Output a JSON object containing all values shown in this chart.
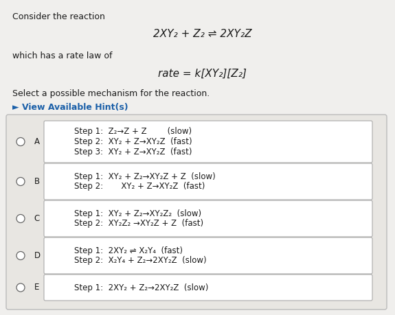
{
  "title_text": "Consider the reaction",
  "reaction_eq": "2XY₂ + Z₂ ⇌ 2XY₂Z",
  "rate_law_label": "which has a rate law of",
  "rate_law": "rate = k[XY₂][Z₂]",
  "select_text": "Select a possible mechanism for the reaction.",
  "hint_text": "► View Available Hint(s)",
  "bg_color": "#f0efed",
  "outer_box_color": "#e8e6e2",
  "inner_box_color": "#ffffff",
  "outer_edge_color": "#bbbbbb",
  "inner_edge_color": "#aaaaaa",
  "text_color": "#1a1a1a",
  "hint_color": "#1a5fa8",
  "options": [
    {
      "label": "A",
      "lines": [
        "Step 1:  Z₂→Z + Z        (slow)",
        "Step 2:  XY₂ + Z→XY₂Z  (fast)",
        "Step 3:  XY₂ + Z→XY₂Z  (fast)"
      ]
    },
    {
      "label": "B",
      "lines": [
        "Step 1:  XY₂ + Z₂→XY₂Z + Z  (slow)",
        "Step 2:       XY₂ + Z→XY₂Z  (fast)"
      ]
    },
    {
      "label": "C",
      "lines": [
        "Step 1:  XY₂ + Z₂→XY₂Z₂  (slow)",
        "Step 2:  XY₂Z₂ →XY₂Z + Z  (fast)"
      ]
    },
    {
      "label": "D",
      "lines": [
        "Step 1:  2XY₂ ⇌ X₂Y₄  (fast)",
        "Step 2:  X₂Y₄ + Z₂→2XY₂Z  (slow)"
      ]
    },
    {
      "label": "E",
      "lines": [
        "Step 1:  2XY₂ + Z₂→2XY₂Z  (slow)"
      ]
    }
  ]
}
